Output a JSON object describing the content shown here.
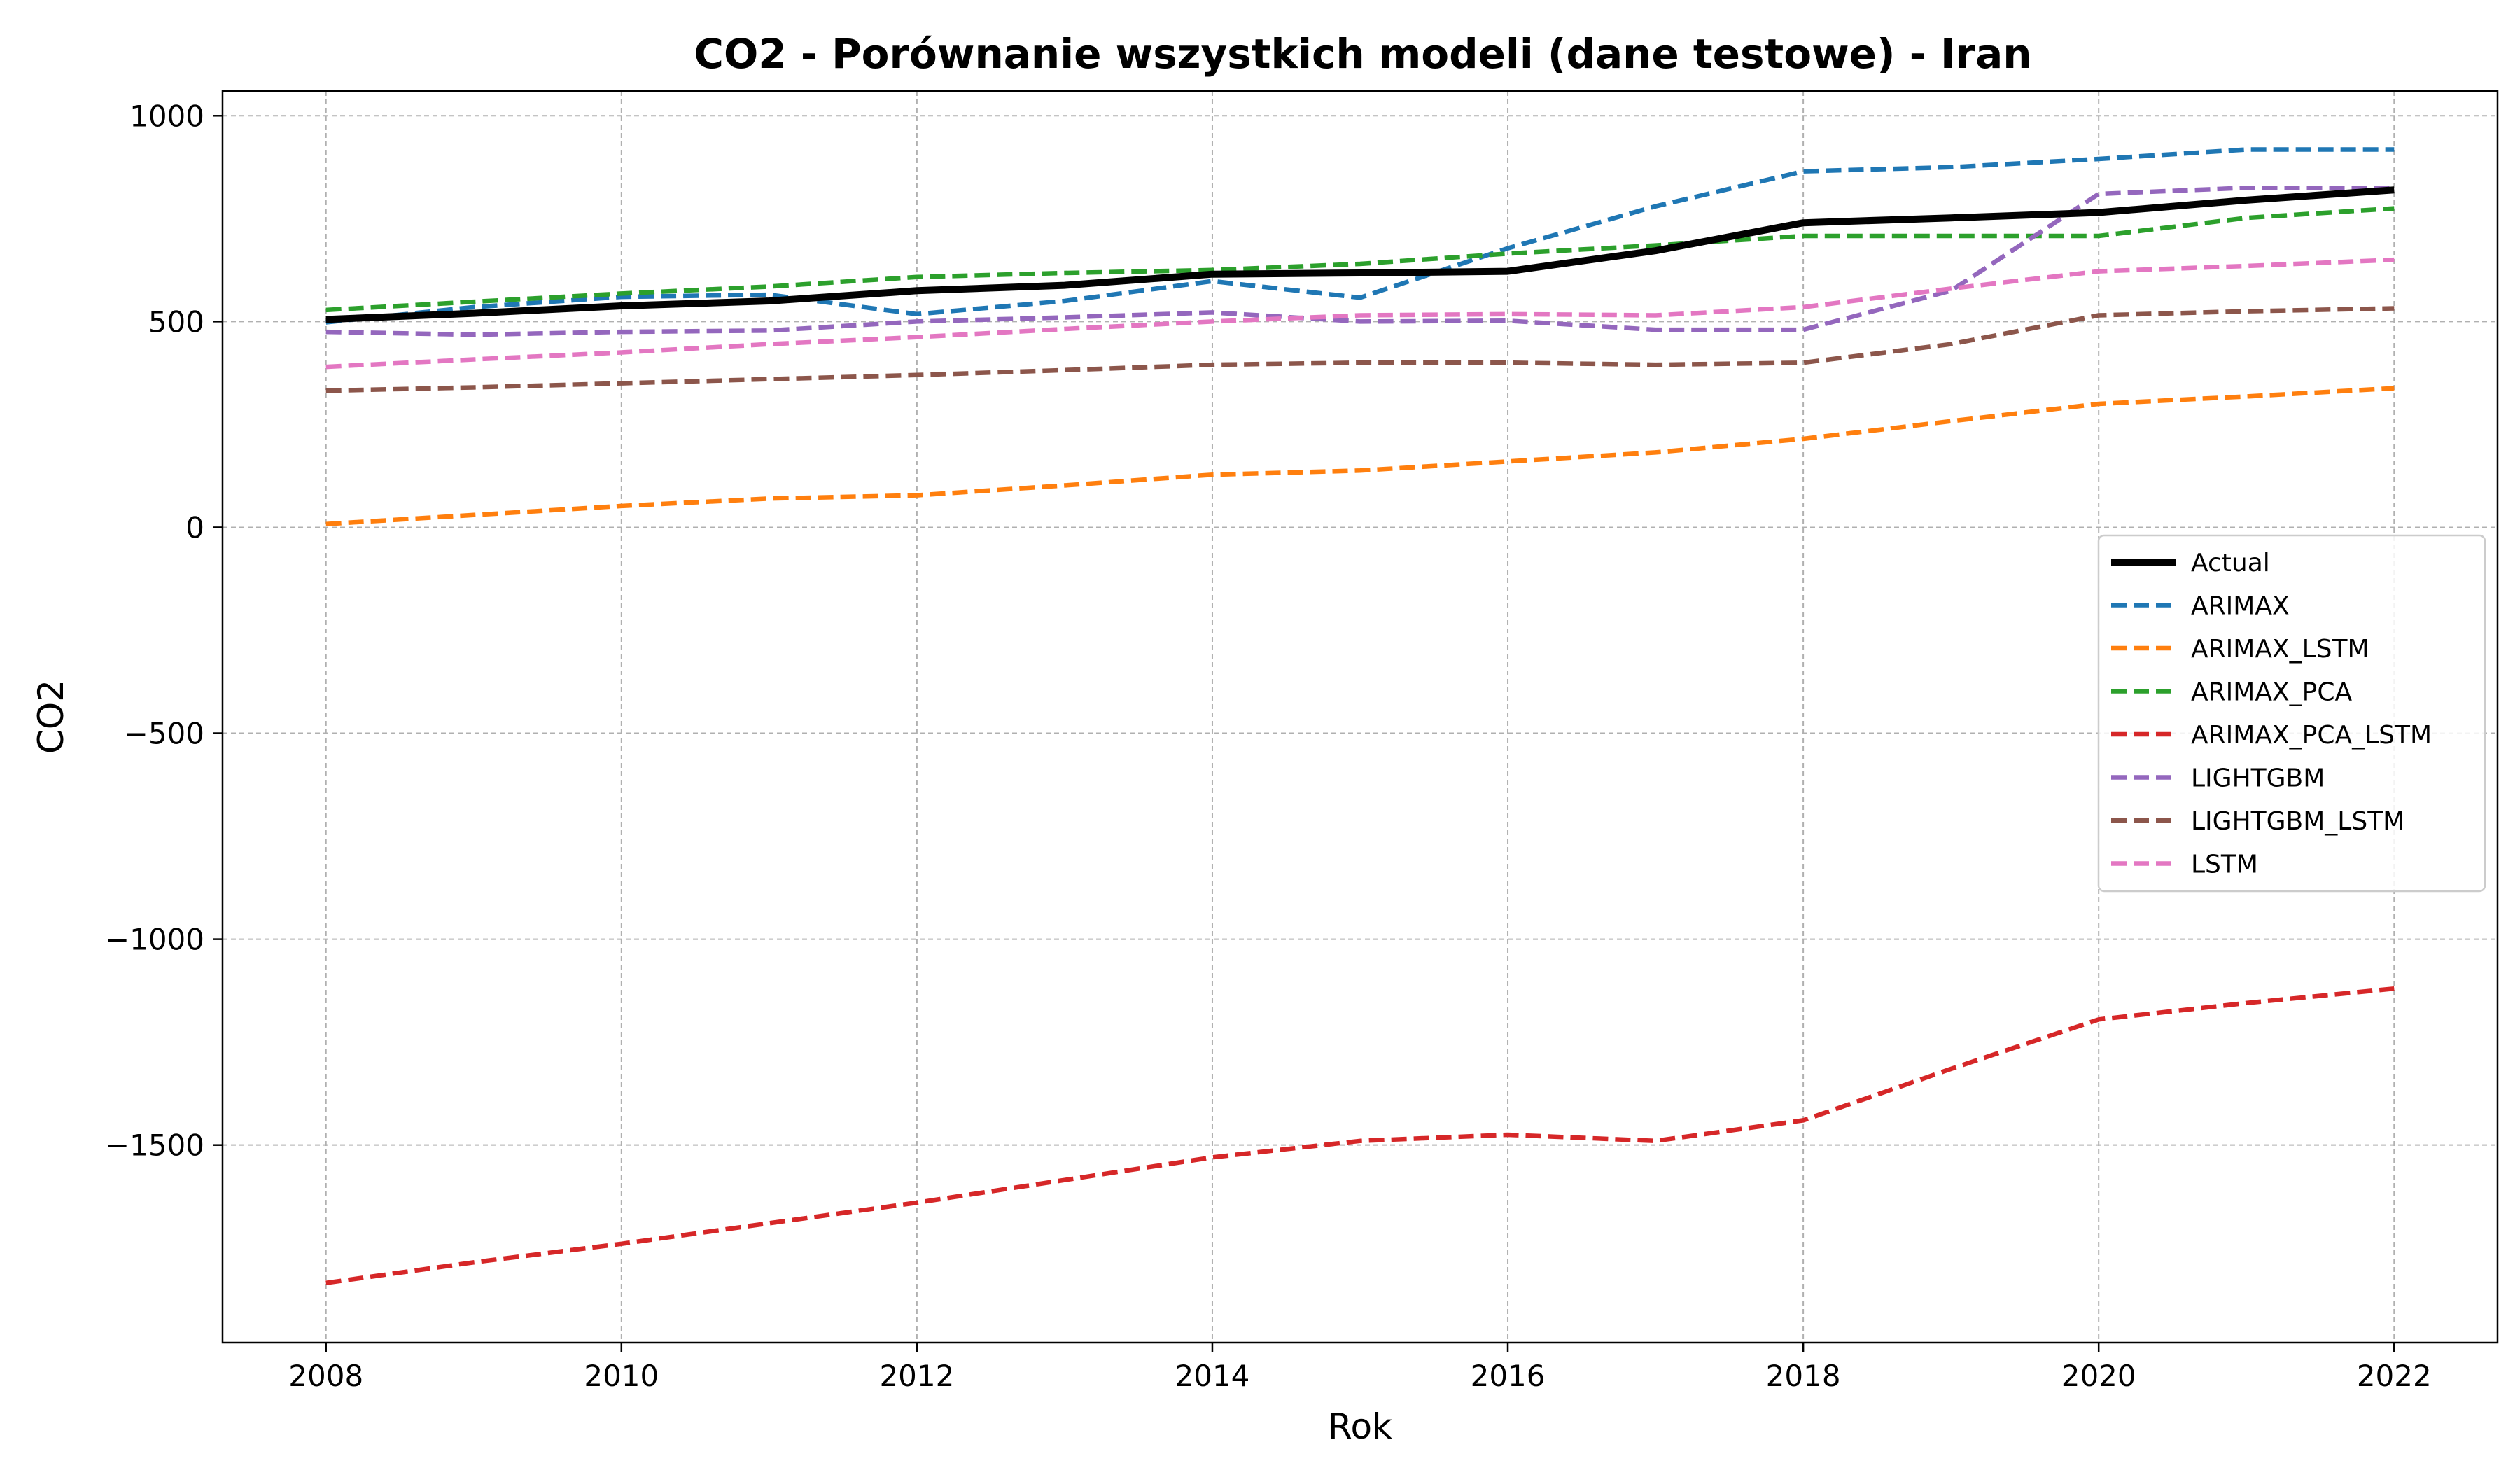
{
  "chart_data": {
    "type": "line",
    "title": "CO2 - Porównanie wszystkich modeli (dane testowe) - Iran",
    "xlabel": "Rok",
    "ylabel": "CO2",
    "xlim": [
      2007.3,
      2022.7
    ],
    "ylim": [
      -1980,
      1060
    ],
    "xticks": [
      2008,
      2010,
      2012,
      2014,
      2016,
      2018,
      2020,
      2022
    ],
    "xtick_labels": [
      "2008",
      "2010",
      "2012",
      "2014",
      "2016",
      "2018",
      "2020",
      "2022"
    ],
    "yticks": [
      1000,
      500,
      0,
      -500,
      -1000,
      -1500
    ],
    "ytick_labels": [
      "1000",
      "500",
      "0",
      "−500",
      "−1000",
      "−1500"
    ],
    "grid": true,
    "legend_position": "center-right",
    "x": [
      2008,
      2009,
      2010,
      2011,
      2012,
      2013,
      2014,
      2015,
      2016,
      2017,
      2018,
      2019,
      2020,
      2021,
      2022
    ],
    "series": [
      {
        "name": "Actual",
        "color": "#000000",
        "style": "solid",
        "values": [
          505,
          520,
          538,
          550,
          575,
          588,
          615,
          618,
          622,
          672,
          740,
          752,
          765,
          795,
          820
        ]
      },
      {
        "name": "ARIMAX",
        "color": "#1f77b4",
        "style": "dashed",
        "values": [
          498,
          535,
          560,
          565,
          518,
          550,
          598,
          558,
          678,
          780,
          865,
          875,
          895,
          918,
          918
        ]
      },
      {
        "name": "ARIMAX_LSTM",
        "color": "#ff7f0e",
        "style": "dashed",
        "values": [
          8,
          30,
          52,
          70,
          78,
          102,
          128,
          138,
          160,
          182,
          215,
          258,
          300,
          318,
          338
        ]
      },
      {
        "name": "ARIMAX_PCA",
        "color": "#2ca02c",
        "style": "dashed",
        "values": [
          528,
          548,
          568,
          585,
          608,
          618,
          625,
          640,
          665,
          685,
          708,
          708,
          708,
          752,
          775
        ]
      },
      {
        "name": "ARIMAX_PCA_LSTM",
        "color": "#d62728",
        "style": "dashed",
        "values": [
          -1835,
          -1785,
          -1740,
          -1690,
          -1640,
          -1585,
          -1530,
          -1490,
          -1475,
          -1490,
          -1440,
          -1315,
          -1195,
          -1155,
          -1120
        ]
      },
      {
        "name": "LIGHTGBM",
        "color": "#9467bd",
        "style": "dashed",
        "values": [
          475,
          468,
          475,
          478,
          500,
          510,
          522,
          500,
          502,
          480,
          480,
          575,
          810,
          825,
          825
        ]
      },
      {
        "name": "LIGHTGBM_LSTM",
        "color": "#8c564b",
        "style": "dashed",
        "values": [
          332,
          340,
          350,
          360,
          370,
          382,
          395,
          400,
          400,
          395,
          400,
          445,
          515,
          525,
          532
        ]
      },
      {
        "name": "LSTM",
        "color": "#e377c2",
        "style": "dashed",
        "values": [
          390,
          408,
          425,
          445,
          462,
          482,
          500,
          515,
          518,
          515,
          535,
          580,
          622,
          635,
          650
        ]
      }
    ]
  }
}
